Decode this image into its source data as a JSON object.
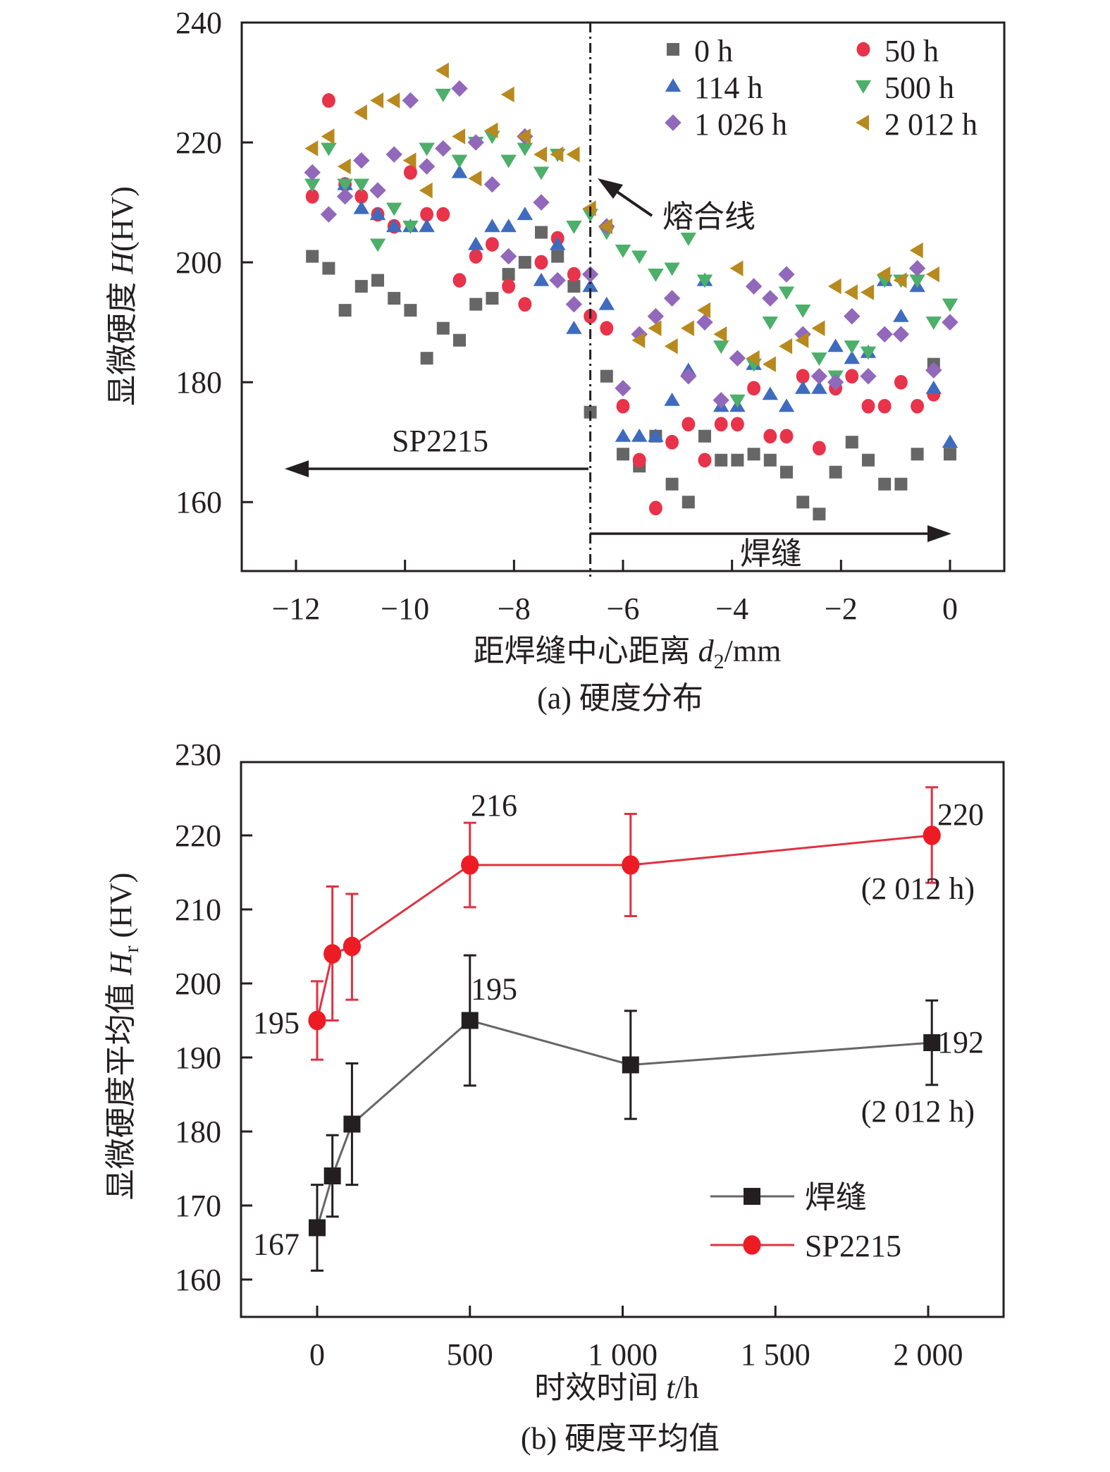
{
  "chart_data": [
    {
      "id": "a",
      "type": "scatter",
      "caption": "(a) 硬度分布",
      "xlabel": "距焊缝中心距离 d2/mm",
      "xlabel_parts": {
        "prefix": "距焊缝中心距离 ",
        "var": "d",
        "sub": "2",
        "suffix": "/mm"
      },
      "ylabel": "显微硬度 H(HV)",
      "ylabel_parts": {
        "prefix": "显微硬度 ",
        "var": "H",
        "suffix": "(HV)"
      },
      "xlim": [
        -13.0,
        1.0
      ],
      "ylim": [
        148.5,
        240
      ],
      "xticks": [
        -12,
        -10,
        -8,
        -6,
        -4,
        -2,
        0
      ],
      "xtick_labels": [
        "−12",
        "−10",
        "−8",
        "−6",
        "−4",
        "−2",
        "0"
      ],
      "yticks": [
        160,
        180,
        200,
        220,
        240
      ],
      "ytick_labels": [
        "160",
        "180",
        "200",
        "220",
        "240"
      ],
      "grid": false,
      "legend_position": "top-right",
      "fusion_line_x": -6.6,
      "annotations": {
        "fusion_line": "熔合线",
        "left_region": "SP2215",
        "right_region": "焊缝"
      },
      "series": [
        {
          "name": "0 h",
          "marker": "square",
          "color": "#666666",
          "x": [
            -11.7,
            -11.4,
            -11.1,
            -10.8,
            -10.5,
            -10.2,
            -9.9,
            -9.6,
            -9.3,
            -9.0,
            -8.7,
            -8.4,
            -8.1,
            -7.8,
            -7.5,
            -7.2,
            -6.9,
            -6.6,
            -6.3,
            -6.0,
            -5.7,
            -5.4,
            -5.1,
            -4.8,
            -4.5,
            -4.2,
            -3.9,
            -3.6,
            -3.3,
            -3.0,
            -2.7,
            -2.4,
            -2.1,
            -1.8,
            -1.5,
            -1.2,
            -0.9,
            -0.6,
            -0.3,
            0.0
          ],
          "y": [
            201,
            199,
            192,
            196,
            197,
            194,
            192,
            184,
            189,
            187,
            193,
            194,
            198,
            200,
            205,
            201,
            196,
            175,
            181,
            168,
            166,
            171,
            163,
            160,
            171,
            167,
            167,
            168,
            167,
            165,
            160,
            158,
            165,
            170,
            167,
            163,
            163,
            168,
            183,
            168
          ]
        },
        {
          "name": "50 h",
          "marker": "circle",
          "color": "#e8334a",
          "x": [
            -11.7,
            -11.4,
            -11.1,
            -10.8,
            -10.5,
            -10.2,
            -9.9,
            -9.6,
            -9.3,
            -9.0,
            -8.7,
            -8.4,
            -8.1,
            -7.8,
            -7.5,
            -7.2,
            -6.9,
            -6.6,
            -6.3,
            -6.0,
            -5.7,
            -5.4,
            -5.1,
            -4.8,
            -4.5,
            -4.2,
            -3.9,
            -3.6,
            -3.3,
            -3.0,
            -2.7,
            -2.4,
            -2.1,
            -1.8,
            -1.5,
            -1.2,
            -0.9,
            -0.6,
            -0.3
          ],
          "y": [
            211,
            227,
            213,
            211,
            208,
            206,
            215,
            208,
            208,
            197,
            201,
            203,
            196,
            193,
            200,
            204,
            198,
            191,
            189,
            176,
            167,
            159,
            170,
            173,
            167,
            173,
            173,
            179,
            171,
            171,
            181,
            169,
            179,
            181,
            176,
            176,
            180,
            176,
            178
          ]
        },
        {
          "name": "114 h",
          "marker": "triangle-up",
          "color": "#3f6bbf",
          "x": [
            -11.1,
            -10.8,
            -10.5,
            -10.2,
            -9.9,
            -9.6,
            -9.0,
            -8.7,
            -8.4,
            -8.1,
            -7.8,
            -7.5,
            -7.2,
            -6.9,
            -6.6,
            -6.3,
            -6.0,
            -5.7,
            -5.4,
            -5.1,
            -4.8,
            -4.5,
            -4.2,
            -3.9,
            -3.6,
            -3.3,
            -3.0,
            -2.7,
            -2.4,
            -2.1,
            -1.8,
            -1.5,
            -1.2,
            -0.9,
            -0.6,
            -0.3,
            0.0
          ],
          "y": [
            213,
            209,
            208,
            206,
            206,
            206,
            215,
            203,
            206,
            206,
            208,
            197,
            203,
            189,
            196,
            193,
            171,
            171,
            171,
            177,
            182,
            197,
            176,
            176,
            183,
            178,
            176,
            179,
            179,
            186,
            184,
            185,
            197,
            191,
            196,
            179,
            170
          ]
        },
        {
          "name": "500 h",
          "marker": "triangle-down",
          "color": "#4caf6a",
          "x": [
            -11.7,
            -11.4,
            -11.1,
            -10.8,
            -10.5,
            -10.2,
            -9.9,
            -9.6,
            -9.3,
            -9.0,
            -8.7,
            -8.4,
            -8.1,
            -7.8,
            -7.5,
            -7.2,
            -6.9,
            -6.6,
            -6.3,
            -6.0,
            -5.7,
            -5.4,
            -5.1,
            -4.8,
            -4.5,
            -4.2,
            -3.9,
            -3.6,
            -3.3,
            -3.0,
            -2.7,
            -2.4,
            -2.1,
            -1.8,
            -1.5,
            -1.2,
            -0.9,
            -0.6,
            -0.3,
            0.0
          ],
          "y": [
            213,
            219,
            213,
            213,
            203,
            209,
            206,
            219,
            228,
            217,
            220,
            221,
            217,
            219,
            215,
            218,
            206,
            208,
            205,
            202,
            201,
            198,
            199,
            204,
            197,
            186,
            177,
            183,
            190,
            195,
            192,
            184,
            181,
            186,
            185,
            197,
            197,
            197,
            190,
            193
          ]
        },
        {
          "name": "1 026 h",
          "marker": "diamond",
          "color": "#9268bb",
          "x": [
            -11.7,
            -11.4,
            -11.1,
            -10.8,
            -10.5,
            -10.2,
            -9.9,
            -9.6,
            -9.3,
            -9.0,
            -8.7,
            -8.4,
            -8.1,
            -7.8,
            -7.5,
            -7.2,
            -6.9,
            -6.6,
            -6.3,
            -6.0,
            -5.7,
            -5.4,
            -5.1,
            -4.8,
            -4.5,
            -4.2,
            -3.9,
            -3.6,
            -3.3,
            -3.0,
            -2.7,
            -2.4,
            -2.1,
            -1.8,
            -1.5,
            -1.2,
            -0.9,
            -0.6,
            -0.3,
            0.0
          ],
          "y": [
            215,
            208,
            211,
            217,
            212,
            218,
            227,
            216,
            219,
            229,
            220,
            213,
            201,
            221,
            210,
            197,
            193,
            198,
            206,
            179,
            188,
            191,
            194,
            181,
            190,
            177,
            184,
            196,
            194,
            198,
            188,
            181,
            180,
            191,
            181,
            188,
            188,
            199,
            182,
            190
          ]
        },
        {
          "name": "2 012 h",
          "marker": "triangle-left",
          "color": "#b8891e",
          "x": [
            -11.7,
            -11.4,
            -11.1,
            -10.8,
            -10.5,
            -10.2,
            -9.9,
            -9.6,
            -9.3,
            -9.0,
            -8.7,
            -8.4,
            -8.1,
            -7.8,
            -7.5,
            -7.2,
            -6.9,
            -6.6,
            -6.3,
            -5.7,
            -5.4,
            -5.1,
            -4.8,
            -4.5,
            -4.2,
            -3.9,
            -3.6,
            -3.3,
            -3.0,
            -2.7,
            -2.4,
            -2.1,
            -1.8,
            -1.5,
            -1.2,
            -0.9,
            -0.6,
            -0.3
          ],
          "y": [
            219,
            221,
            216,
            225,
            227,
            227,
            217,
            212,
            232,
            221,
            214,
            222,
            228,
            221,
            218,
            218,
            218,
            209,
            206,
            187,
            189,
            186,
            189,
            192,
            188,
            199,
            184,
            183,
            186,
            187,
            189,
            196,
            195,
            195,
            198,
            197,
            202,
            198
          ]
        }
      ]
    },
    {
      "id": "b",
      "type": "line",
      "caption": "(b) 硬度平均值",
      "xlabel": "时效时间 t/h",
      "xlabel_parts": {
        "prefix": "时效时间 ",
        "var": "t",
        "suffix": "/h"
      },
      "ylabel": "显微硬度平均值 Hr (HV)",
      "ylabel_parts": {
        "prefix": "显微硬度平均值 ",
        "var": "H",
        "sub": "r",
        "suffix": " (HV)"
      },
      "xlim": [
        -260,
        2200
      ],
      "ylim": [
        155,
        231
      ],
      "xticks": [
        0,
        500,
        1000,
        1500,
        2000
      ],
      "xtick_labels": [
        "0",
        "500",
        "1 000",
        "1 500",
        "2 000"
      ],
      "yticks": [
        160,
        170,
        180,
        190,
        200,
        210,
        220,
        230
      ],
      "ytick_labels": [
        "160",
        "170",
        "180",
        "190",
        "200",
        "210",
        "220",
        "230"
      ],
      "grid": false,
      "legend_position": "bottom-right",
      "series": [
        {
          "name": "焊缝",
          "marker": "square",
          "color": "#231f20",
          "line_color": "#666666",
          "x": [
            0,
            50,
            114,
            500,
            1026,
            2012
          ],
          "y": [
            167,
            174,
            181,
            195,
            189,
            192
          ],
          "err_low": [
            161.2,
            168.5,
            172.8,
            186.2,
            181.7,
            186.3
          ],
          "err_high": [
            172.8,
            179.5,
            189.2,
            203.8,
            196.3,
            197.7
          ]
        },
        {
          "name": "SP2215",
          "marker": "circle",
          "color": "#ed1c24",
          "line_color": "#e03142",
          "x": [
            0,
            50,
            114,
            500,
            1026,
            2012
          ],
          "y": [
            195,
            204,
            205,
            216,
            216,
            220
          ],
          "err_low": [
            189.7,
            195.0,
            197.8,
            210.3,
            209.1,
            213.6
          ],
          "err_high": [
            200.3,
            213.1,
            212.1,
            221.7,
            222.9,
            226.5
          ]
        }
      ],
      "annotations": [
        {
          "text": "195",
          "series": "SP2215",
          "point": 0
        },
        {
          "text": "216",
          "series": "SP2215",
          "point": 3
        },
        {
          "text": "220",
          "series": "SP2215",
          "point": 5
        },
        {
          "text": "(2 012 h)",
          "series": "SP2215",
          "point": 5
        },
        {
          "text": "167",
          "series": "焊缝",
          "point": 0
        },
        {
          "text": "195",
          "series": "焊缝",
          "point": 3
        },
        {
          "text": "192",
          "series": "焊缝",
          "point": 5
        },
        {
          "text": "(2 012 h)",
          "series": "焊缝",
          "point": 5
        }
      ]
    }
  ]
}
